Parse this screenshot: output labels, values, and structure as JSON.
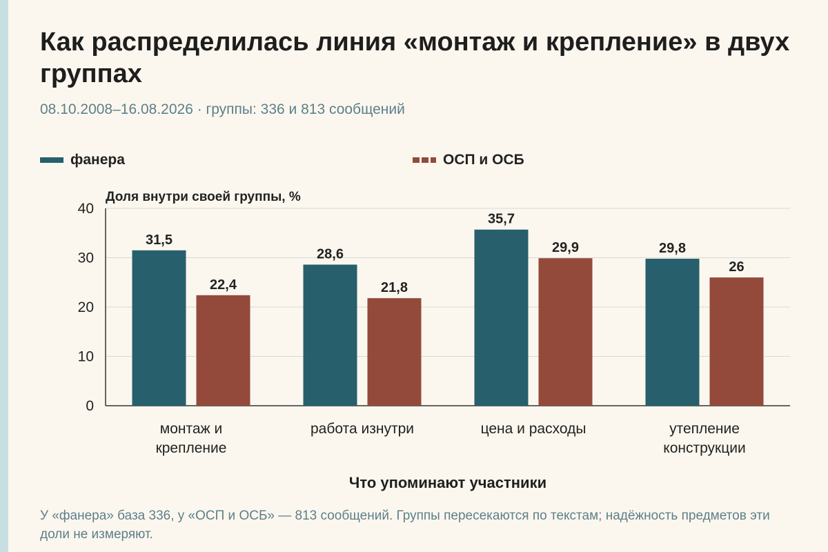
{
  "title": "Как распределилась линия «монтаж и крепление» в двух группах",
  "subtitle": "08.10.2008–16.08.2026 · группы: 336 и 813 сообщений",
  "footnote": "У «фанера» база 336, у «ОСП и ОСБ» — 813 сообщений. Группы пересекаются по текстам; надёжность предметов эти доли не измеряют.",
  "chart_data": {
    "type": "bar",
    "categories": [
      [
        "монтаж и",
        "крепление"
      ],
      [
        "работа изнутри"
      ],
      [
        "цена и расходы"
      ],
      [
        "утепление",
        "конструкции"
      ]
    ],
    "series": [
      {
        "name": "фанера",
        "values": [
          31.5,
          28.6,
          35.7,
          29.8
        ],
        "labels": [
          "31,5",
          "28,6",
          "35,7",
          "29,8"
        ],
        "color": "#27606c"
      },
      {
        "name": "ОСП и ОСБ",
        "values": [
          22.4,
          21.8,
          29.9,
          26
        ],
        "labels": [
          "22,4",
          "21,8",
          "29,9",
          "26"
        ],
        "color": "#934a3b"
      }
    ],
    "ylabel": "Доля внутри своей группы, %",
    "xlabel": "Что упоминают участники",
    "ylim": [
      0,
      40
    ],
    "yticks": [
      0,
      10,
      20,
      30,
      40
    ],
    "grid": true,
    "legend": "top-left"
  }
}
